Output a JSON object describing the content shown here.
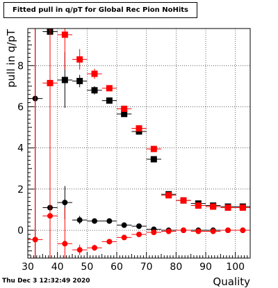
{
  "footer": {
    "timestamp": "Thu Dec  3 12:32:49 2020"
  },
  "chart_data": {
    "type": "scatter",
    "title": "Fitted pull in q/pT for Global Rec Pion NoHits",
    "xlabel": "Quality",
    "ylabel": "pull in q/pT",
    "xlim": [
      30,
      105
    ],
    "ylim": [
      -1.35,
      9.8
    ],
    "grid": true,
    "x_ticks": [
      30,
      40,
      50,
      60,
      70,
      80,
      90,
      100
    ],
    "y_ticks": [
      0,
      2,
      4,
      6,
      8
    ],
    "x_tick_labels": [
      "30",
      "40",
      "50",
      "60",
      "70",
      "80",
      "90",
      "100"
    ],
    "y_tick_labels": [
      "0",
      "2",
      "4",
      "6",
      "8"
    ],
    "x_bin_half_width": 2.5,
    "series": [
      {
        "marker": "square",
        "color": "#000000",
        "points": [
          {
            "x": 37.5,
            "y": 9.65,
            "ylo": 9.65,
            "yhi": 9.65
          },
          {
            "x": 42.5,
            "y": 7.3,
            "ylo": 5.95,
            "yhi": 8.65
          },
          {
            "x": 47.5,
            "y": 7.25,
            "ylo": 6.95,
            "yhi": 7.55
          },
          {
            "x": 52.5,
            "y": 6.8,
            "ylo": 6.6,
            "yhi": 7.0
          },
          {
            "x": 57.5,
            "y": 6.3,
            "ylo": 6.22,
            "yhi": 6.38
          },
          {
            "x": 62.5,
            "y": 5.65,
            "ylo": 5.6,
            "yhi": 5.7
          },
          {
            "x": 67.5,
            "y": 4.8,
            "ylo": 4.76,
            "yhi": 4.84
          },
          {
            "x": 72.5,
            "y": 3.45,
            "ylo": 3.42,
            "yhi": 3.48
          },
          {
            "x": 77.5,
            "y": 1.75,
            "ylo": 1.73,
            "yhi": 1.77
          },
          {
            "x": 82.5,
            "y": 1.45,
            "ylo": 1.43,
            "yhi": 1.47
          },
          {
            "x": 87.5,
            "y": 1.3,
            "ylo": 1.28,
            "yhi": 1.32
          },
          {
            "x": 92.5,
            "y": 1.2,
            "ylo": 1.18,
            "yhi": 1.22
          },
          {
            "x": 97.5,
            "y": 1.15,
            "ylo": 1.13,
            "yhi": 1.17
          },
          {
            "x": 102.5,
            "y": 1.15,
            "ylo": 1.13,
            "yhi": 1.17
          }
        ]
      },
      {
        "marker": "square",
        "color": "#ff0000",
        "points": [
          {
            "x": 37.5,
            "y": 7.15,
            "ylo": 4.0,
            "yhi": 9.8
          },
          {
            "x": 42.5,
            "y": 9.5,
            "ylo": 7.8,
            "yhi": 9.8
          },
          {
            "x": 47.5,
            "y": 8.3,
            "ylo": 7.8,
            "yhi": 8.8
          },
          {
            "x": 52.5,
            "y": 7.6,
            "ylo": 7.35,
            "yhi": 7.85
          },
          {
            "x": 57.5,
            "y": 6.9,
            "ylo": 6.8,
            "yhi": 7.0
          },
          {
            "x": 62.5,
            "y": 5.9,
            "ylo": 5.84,
            "yhi": 5.96
          },
          {
            "x": 67.5,
            "y": 4.95,
            "ylo": 4.91,
            "yhi": 4.99
          },
          {
            "x": 72.5,
            "y": 3.95,
            "ylo": 3.92,
            "yhi": 3.98
          },
          {
            "x": 77.5,
            "y": 1.7,
            "ylo": 1.68,
            "yhi": 1.72
          },
          {
            "x": 82.5,
            "y": 1.45,
            "ylo": 1.43,
            "yhi": 1.47
          },
          {
            "x": 87.5,
            "y": 1.2,
            "ylo": 1.18,
            "yhi": 1.22
          },
          {
            "x": 92.5,
            "y": 1.15,
            "ylo": 1.13,
            "yhi": 1.17
          },
          {
            "x": 97.5,
            "y": 1.1,
            "ylo": 1.08,
            "yhi": 1.12
          },
          {
            "x": 102.5,
            "y": 1.1,
            "ylo": 1.08,
            "yhi": 1.12
          }
        ]
      },
      {
        "marker": "circle",
        "color": "#000000",
        "points": [
          {
            "x": 32.5,
            "y": 6.4,
            "ylo": -1.35,
            "yhi": 9.8
          },
          {
            "x": 37.5,
            "y": 1.1,
            "ylo": -1.35,
            "yhi": 3.7
          },
          {
            "x": 42.5,
            "y": 1.35,
            "ylo": 0.55,
            "yhi": 2.15
          },
          {
            "x": 47.5,
            "y": 0.5,
            "ylo": 0.3,
            "yhi": 0.7
          },
          {
            "x": 52.5,
            "y": 0.45,
            "ylo": 0.35,
            "yhi": 0.55
          },
          {
            "x": 57.5,
            "y": 0.45,
            "ylo": 0.39,
            "yhi": 0.51
          },
          {
            "x": 62.5,
            "y": 0.25,
            "ylo": 0.21,
            "yhi": 0.29
          },
          {
            "x": 67.5,
            "y": 0.2,
            "ylo": 0.17,
            "yhi": 0.23
          },
          {
            "x": 72.5,
            "y": 0.05,
            "ylo": 0.03,
            "yhi": 0.07
          },
          {
            "x": 77.5,
            "y": 0.0,
            "ylo": -0.02,
            "yhi": 0.02
          },
          {
            "x": 82.5,
            "y": 0.0,
            "ylo": -0.02,
            "yhi": 0.02
          },
          {
            "x": 87.5,
            "y": 0.0,
            "ylo": -0.02,
            "yhi": 0.02
          },
          {
            "x": 92.5,
            "y": 0.0,
            "ylo": -0.02,
            "yhi": 0.02
          },
          {
            "x": 97.5,
            "y": 0.0,
            "ylo": -0.02,
            "yhi": 0.02
          },
          {
            "x": 102.5,
            "y": 0.0,
            "ylo": -0.02,
            "yhi": 0.02
          }
        ]
      },
      {
        "marker": "circle",
        "color": "#ff0000",
        "points": [
          {
            "x": 32.5,
            "y": -0.45,
            "ylo": -1.35,
            "yhi": 9.8
          },
          {
            "x": 37.5,
            "y": 0.7,
            "ylo": -1.35,
            "yhi": 9.8
          },
          {
            "x": 42.5,
            "y": -0.65,
            "ylo": -1.35,
            "yhi": 1.1
          },
          {
            "x": 47.5,
            "y": -0.95,
            "ylo": -1.2,
            "yhi": -0.7
          },
          {
            "x": 52.5,
            "y": -0.85,
            "ylo": -1.0,
            "yhi": -0.7
          },
          {
            "x": 57.5,
            "y": -0.55,
            "ylo": -0.62,
            "yhi": -0.48
          },
          {
            "x": 62.5,
            "y": -0.35,
            "ylo": -0.4,
            "yhi": -0.3
          },
          {
            "x": 67.5,
            "y": -0.2,
            "ylo": -0.24,
            "yhi": -0.16
          },
          {
            "x": 72.5,
            "y": -0.1,
            "ylo": -0.13,
            "yhi": -0.07
          },
          {
            "x": 77.5,
            "y": -0.05,
            "ylo": -0.07,
            "yhi": -0.03
          },
          {
            "x": 82.5,
            "y": 0.0,
            "ylo": -0.02,
            "yhi": 0.02
          },
          {
            "x": 87.5,
            "y": -0.05,
            "ylo": -0.07,
            "yhi": -0.03
          },
          {
            "x": 92.5,
            "y": -0.05,
            "ylo": -0.07,
            "yhi": -0.03
          },
          {
            "x": 97.5,
            "y": 0.0,
            "ylo": -0.02,
            "yhi": 0.02
          },
          {
            "x": 102.5,
            "y": 0.0,
            "ylo": -0.02,
            "yhi": 0.02
          }
        ]
      }
    ]
  }
}
